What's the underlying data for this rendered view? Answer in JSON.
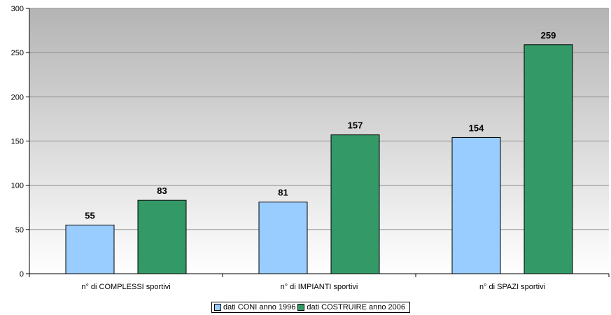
{
  "chart_data": {
    "type": "bar",
    "title": "",
    "xlabel": "",
    "ylabel": "",
    "ylim": [
      0,
      300
    ],
    "yticks": [
      0,
      50,
      100,
      150,
      200,
      250,
      300
    ],
    "grid": true,
    "categories": [
      "n° di COMPLESSI sportivi",
      "n° di IMPIANTI sportivi",
      "n° di SPAZI sportivi"
    ],
    "series": [
      {
        "name": "dati CONI anno 1996",
        "color": "#99ccff",
        "values": [
          55,
          81,
          154
        ]
      },
      {
        "name": "dati COSTRUIRE anno 2006",
        "color": "#339966",
        "values": [
          83,
          157,
          259
        ]
      }
    ],
    "legend_position": "bottom"
  }
}
